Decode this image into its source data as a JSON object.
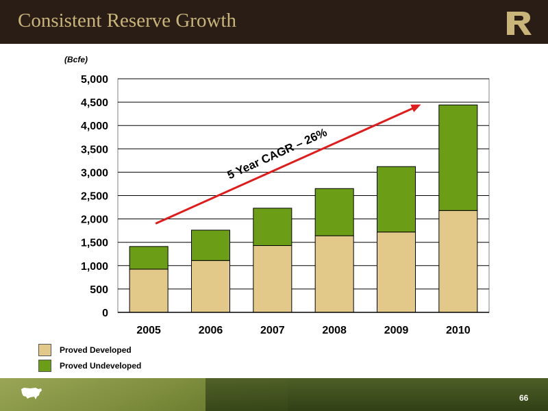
{
  "slide": {
    "title": "Consistent Reserve Growth",
    "page_number": "66",
    "colors": {
      "header_bg": "#2a1d15",
      "title": "#c9b47a",
      "proved_developed": "#e2c98a",
      "proved_undeveloped": "#6b9e16",
      "arrow": "#e01b1b"
    }
  },
  "chart_data": {
    "type": "bar",
    "stacked": true,
    "unit_label": "(Bcfe)",
    "categories": [
      "2005",
      "2006",
      "2007",
      "2008",
      "2009",
      "2010"
    ],
    "series": [
      {
        "name": "Proved Developed",
        "color": "#e2c98a",
        "values": [
          925,
          1110,
          1430,
          1640,
          1720,
          2180
        ]
      },
      {
        "name": "Proved Undeveloped",
        "color": "#6b9e16",
        "values": [
          485,
          650,
          800,
          1010,
          1400,
          2260
        ]
      }
    ],
    "ylim": [
      0,
      5000
    ],
    "yticks": [
      0,
      500,
      1000,
      1500,
      2000,
      2500,
      3000,
      3500,
      4000,
      4500,
      5000
    ],
    "ytick_labels": [
      "0",
      "500",
      "1,000",
      "1,500",
      "2,000",
      "2,500",
      "3,000",
      "3,500",
      "4,000",
      "4,500",
      "5,000"
    ],
    "grid": true,
    "legend_position": "bottom-left",
    "annotation": {
      "text": "5 Year CAGR – 26%",
      "arrow_start": {
        "x": "2005",
        "y": 1900
      },
      "arrow_end": {
        "x": "2009",
        "y": 4450
      }
    }
  },
  "legend": {
    "items": [
      {
        "label": "Proved Developed",
        "color": "#e2c98a"
      },
      {
        "label": "Proved Undeveloped",
        "color": "#6b9e16"
      }
    ]
  },
  "icons": {
    "logo": "r-logo-icon",
    "footer_map": "usa-map-icon"
  }
}
